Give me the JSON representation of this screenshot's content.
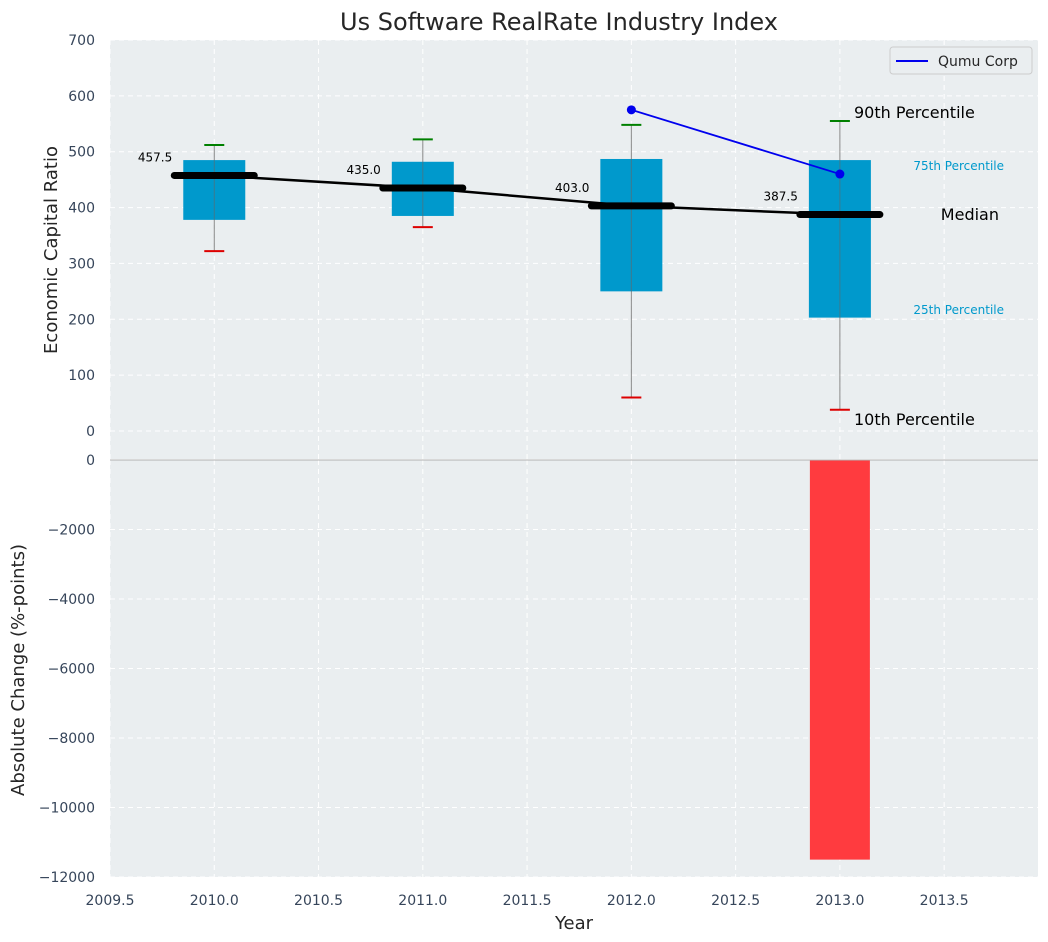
{
  "chart_data": [
    {
      "type": "box",
      "title": "Us Software RealRate Industry Index",
      "xlabel": "",
      "ylabel": "Economic Capital Ratio",
      "ylim": [
        0,
        700
      ],
      "xlim": [
        2009.5,
        2013.95
      ],
      "y_ticks": [
        0,
        100,
        200,
        300,
        400,
        500,
        600,
        700
      ],
      "x": [
        2010,
        2011,
        2012,
        2013
      ],
      "p10": [
        322,
        365,
        60,
        38
      ],
      "p25": [
        378,
        385,
        250,
        203
      ],
      "median": [
        457.5,
        435.0,
        403.0,
        387.5
      ],
      "p75": [
        485,
        482,
        487,
        485
      ],
      "p90": [
        512,
        522,
        548,
        555
      ],
      "median_labels": [
        "457.5",
        "435.0",
        "403.0",
        "387.5"
      ],
      "box_color": "#0099cc",
      "p10_color": "#dd0000",
      "p90_color": "#008000",
      "median_line_color": "#000000",
      "series": [
        {
          "name": "Qumu Corp",
          "x": [
            2012,
            2013
          ],
          "values": [
            575,
            460
          ],
          "color": "#0000ee"
        }
      ],
      "legend": {
        "position": "top-right"
      },
      "annotations": {
        "p90": "90th Percentile",
        "p75": "75th Percentile",
        "median": "Median",
        "p25": "25th Percentile",
        "p10": "10th Percentile"
      },
      "grid": true
    },
    {
      "type": "bar",
      "xlabel": "Year",
      "ylabel": "Absolute Change (%-points)",
      "ylim": [
        -12000,
        0
      ],
      "xlim": [
        2009.5,
        2013.95
      ],
      "y_ticks": [
        0,
        -2000,
        -4000,
        -6000,
        -8000,
        -10000,
        -12000
      ],
      "y_tick_labels": [
        "0",
        "−2000",
        "−4000",
        "−6000",
        "−8000",
        "−10000",
        "−12000"
      ],
      "x_ticks": [
        2009.5,
        2010.0,
        2010.5,
        2011.0,
        2011.5,
        2012.0,
        2012.5,
        2013.0,
        2013.5
      ],
      "x_tick_labels": [
        "2009.5",
        "2010.0",
        "2010.5",
        "2011.0",
        "2011.5",
        "2012.0",
        "2012.5",
        "2013.0",
        "2013.5"
      ],
      "x": [
        2013
      ],
      "values": [
        -11500
      ],
      "bar_color": "#ff3b3f",
      "grid": true
    }
  ]
}
